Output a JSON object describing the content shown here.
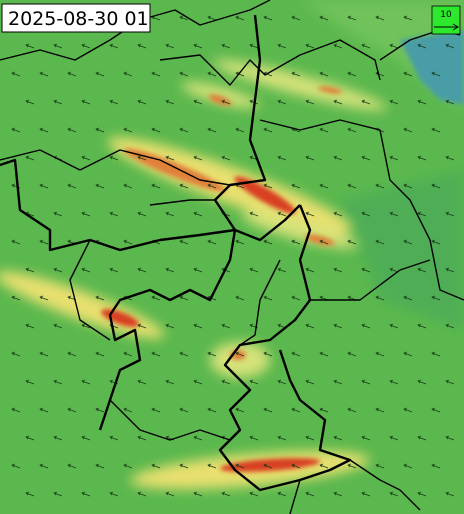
{
  "timestamp": "2025-08-30 01",
  "legend": {
    "label": "10"
  }
}
